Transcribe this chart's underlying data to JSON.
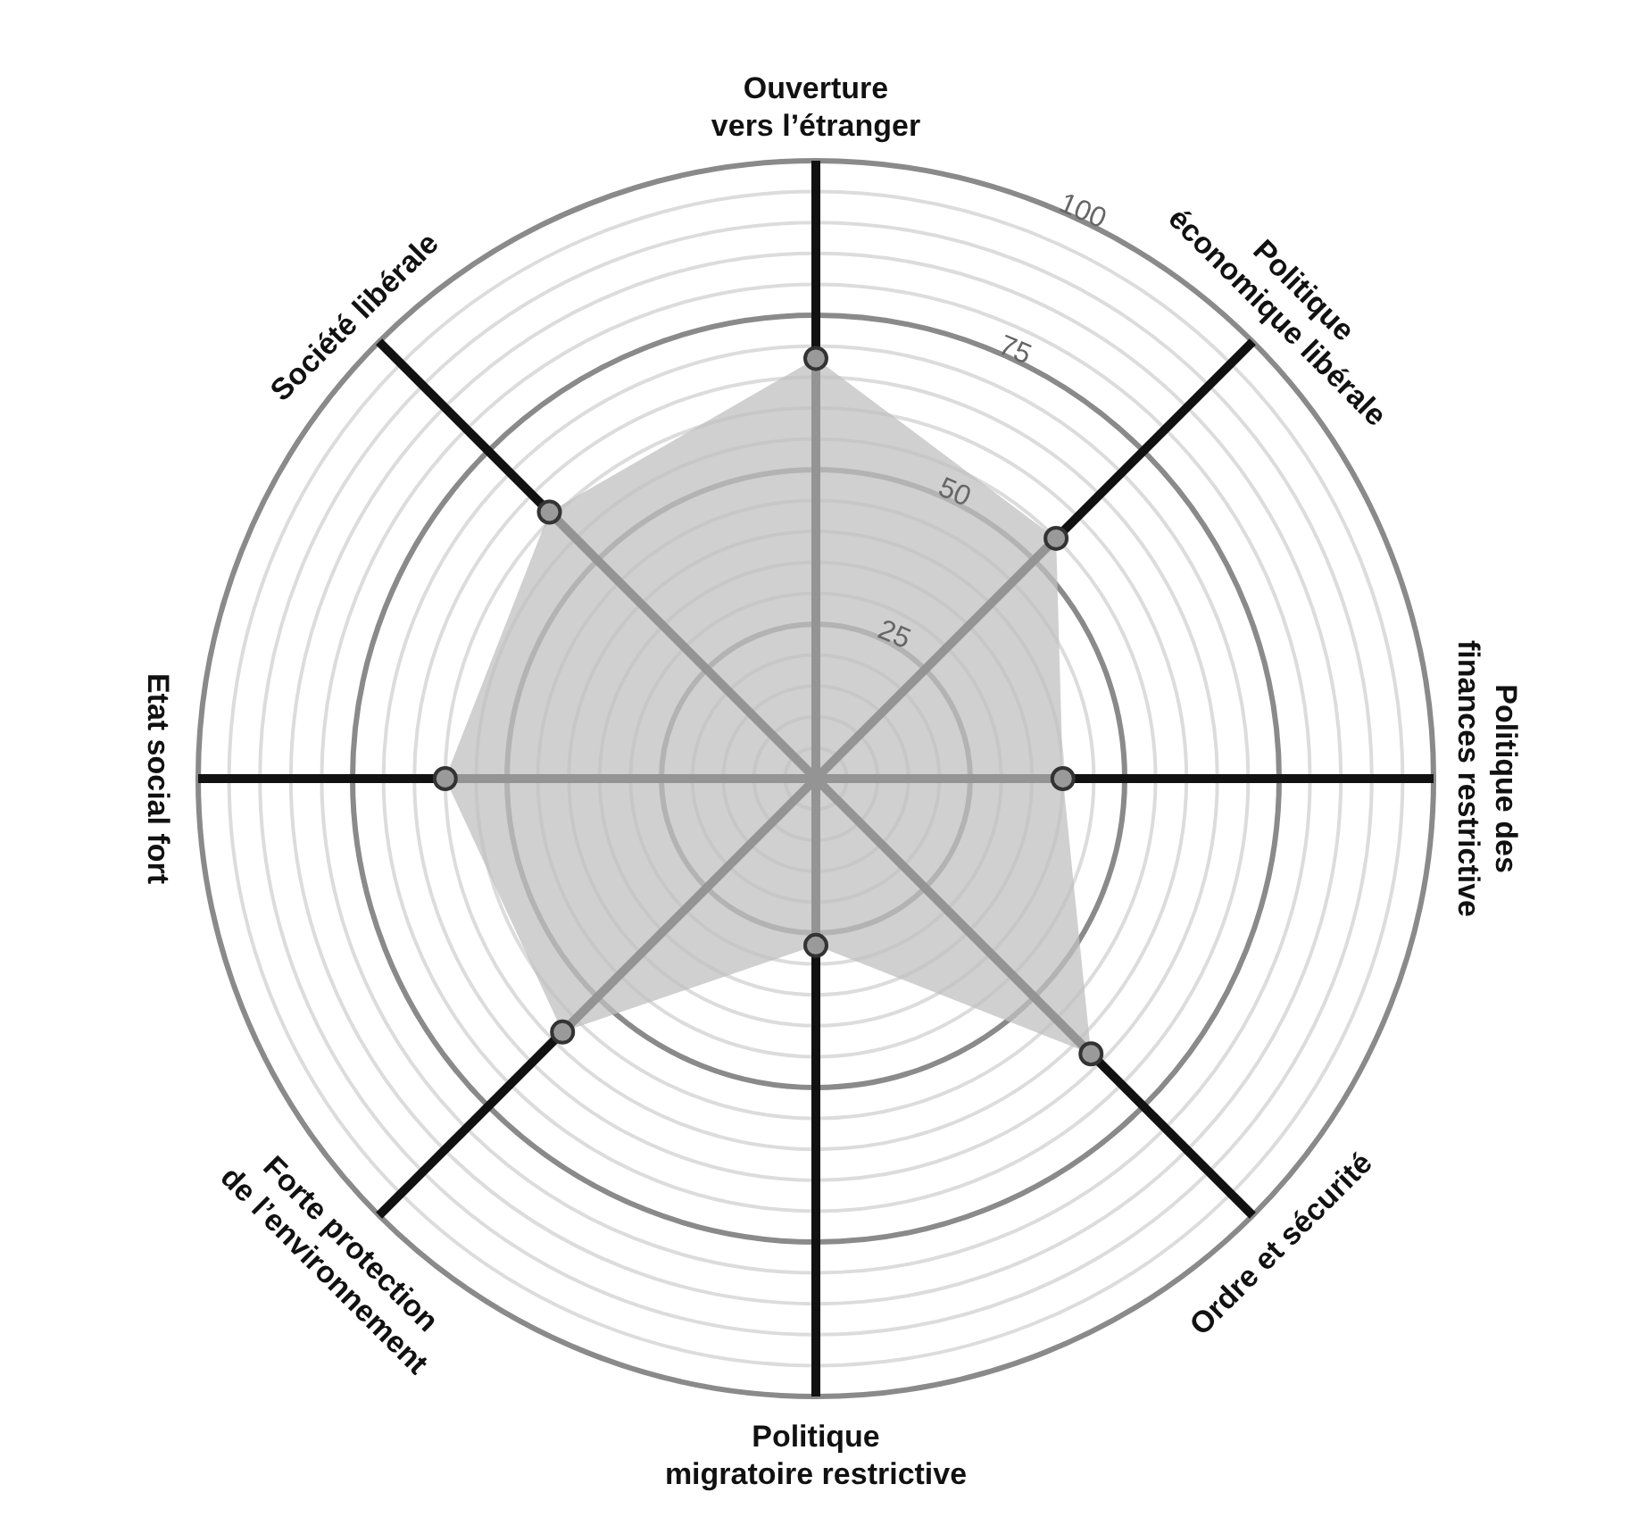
{
  "chart_data": {
    "type": "radar",
    "categories": [
      "Ouverture\nvers l’étranger",
      "Politique\néconomique libérale",
      "Politique des\nfinances restrictive",
      "Ordre et sécurité",
      "Politique\nmigratoire restrictive",
      "Forte protection\nde l’environnement",
      "Etat social fort",
      "Société libérale"
    ],
    "series": [
      {
        "color": "#c0c0c0",
        "values": [
          68,
          55,
          40,
          63,
          27,
          58,
          60,
          61
        ]
      }
    ],
    "ylim": [
      0,
      100
    ],
    "yticks": [
      25,
      50,
      75,
      100
    ],
    "grid": true,
    "marker": "circle",
    "legend": false
  }
}
